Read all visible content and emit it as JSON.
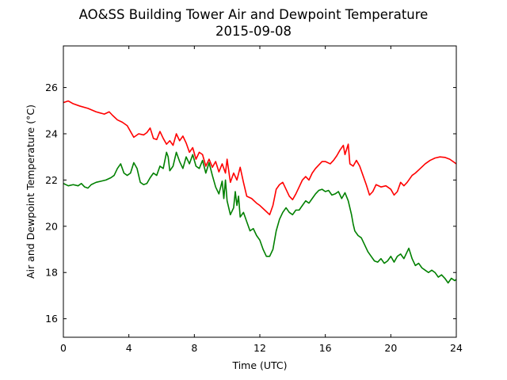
{
  "chart_data": {
    "type": "line",
    "title": "AO&SS Building Tower Air and Dewpoint Temperature",
    "subtitle": "2015-09-08",
    "xlabel": "Time (UTC)",
    "ylabel": "Air and Dewpoint Temperature (°C)",
    "xlim": [
      0,
      24
    ],
    "ylim": [
      15.2,
      27.8
    ],
    "xticks": [
      0,
      4,
      8,
      12,
      16,
      20,
      24
    ],
    "yticks": [
      16,
      18,
      20,
      22,
      24,
      26
    ],
    "grid": false,
    "series": [
      {
        "color": "#ff0000",
        "points": [
          [
            0.0,
            25.35
          ],
          [
            0.3,
            25.42
          ],
          [
            0.6,
            25.3
          ],
          [
            1.0,
            25.2
          ],
          [
            1.5,
            25.1
          ],
          [
            2.0,
            24.95
          ],
          [
            2.5,
            24.85
          ],
          [
            2.8,
            24.95
          ],
          [
            3.0,
            24.8
          ],
          [
            3.3,
            24.6
          ],
          [
            3.6,
            24.5
          ],
          [
            3.9,
            24.35
          ],
          [
            4.1,
            24.1
          ],
          [
            4.3,
            23.85
          ],
          [
            4.6,
            24.0
          ],
          [
            4.9,
            23.95
          ],
          [
            5.1,
            24.05
          ],
          [
            5.3,
            24.25
          ],
          [
            5.5,
            23.8
          ],
          [
            5.7,
            23.75
          ],
          [
            5.9,
            24.1
          ],
          [
            6.1,
            23.8
          ],
          [
            6.3,
            23.55
          ],
          [
            6.5,
            23.7
          ],
          [
            6.7,
            23.5
          ],
          [
            6.9,
            24.0
          ],
          [
            7.1,
            23.7
          ],
          [
            7.3,
            23.9
          ],
          [
            7.5,
            23.6
          ],
          [
            7.7,
            23.2
          ],
          [
            7.9,
            23.4
          ],
          [
            8.1,
            22.9
          ],
          [
            8.3,
            23.2
          ],
          [
            8.5,
            23.1
          ],
          [
            8.7,
            22.6
          ],
          [
            8.9,
            22.9
          ],
          [
            9.1,
            22.55
          ],
          [
            9.3,
            22.8
          ],
          [
            9.5,
            22.35
          ],
          [
            9.7,
            22.7
          ],
          [
            9.9,
            22.3
          ],
          [
            10.0,
            22.9
          ],
          [
            10.2,
            21.9
          ],
          [
            10.4,
            22.3
          ],
          [
            10.6,
            22.0
          ],
          [
            10.8,
            22.55
          ],
          [
            11.0,
            21.9
          ],
          [
            11.2,
            21.3
          ],
          [
            11.5,
            21.2
          ],
          [
            11.8,
            21.0
          ],
          [
            12.0,
            20.9
          ],
          [
            12.3,
            20.7
          ],
          [
            12.6,
            20.5
          ],
          [
            12.8,
            20.9
          ],
          [
            13.0,
            21.6
          ],
          [
            13.2,
            21.8
          ],
          [
            13.4,
            21.9
          ],
          [
            13.6,
            21.6
          ],
          [
            13.8,
            21.3
          ],
          [
            14.0,
            21.15
          ],
          [
            14.2,
            21.4
          ],
          [
            14.4,
            21.7
          ],
          [
            14.6,
            22.0
          ],
          [
            14.8,
            22.15
          ],
          [
            15.0,
            22.0
          ],
          [
            15.2,
            22.3
          ],
          [
            15.4,
            22.5
          ],
          [
            15.6,
            22.65
          ],
          [
            15.8,
            22.8
          ],
          [
            16.0,
            22.8
          ],
          [
            16.3,
            22.7
          ],
          [
            16.5,
            22.85
          ],
          [
            16.7,
            23.05
          ],
          [
            16.9,
            23.3
          ],
          [
            17.1,
            23.5
          ],
          [
            17.2,
            23.1
          ],
          [
            17.4,
            23.55
          ],
          [
            17.5,
            22.7
          ],
          [
            17.7,
            22.6
          ],
          [
            17.9,
            22.85
          ],
          [
            18.1,
            22.6
          ],
          [
            18.3,
            22.2
          ],
          [
            18.5,
            21.8
          ],
          [
            18.7,
            21.35
          ],
          [
            18.9,
            21.5
          ],
          [
            19.1,
            21.8
          ],
          [
            19.4,
            21.7
          ],
          [
            19.7,
            21.75
          ],
          [
            20.0,
            21.6
          ],
          [
            20.2,
            21.35
          ],
          [
            20.4,
            21.5
          ],
          [
            20.6,
            21.9
          ],
          [
            20.8,
            21.75
          ],
          [
            21.0,
            21.9
          ],
          [
            21.3,
            22.2
          ],
          [
            21.5,
            22.3
          ],
          [
            21.8,
            22.5
          ],
          [
            22.1,
            22.7
          ],
          [
            22.4,
            22.85
          ],
          [
            22.7,
            22.95
          ],
          [
            23.0,
            23.0
          ],
          [
            23.3,
            22.98
          ],
          [
            23.6,
            22.9
          ],
          [
            23.8,
            22.8
          ],
          [
            24.0,
            22.7
          ]
        ]
      },
      {
        "color": "#008000",
        "points": [
          [
            0.0,
            21.85
          ],
          [
            0.3,
            21.75
          ],
          [
            0.6,
            21.8
          ],
          [
            0.9,
            21.75
          ],
          [
            1.1,
            21.85
          ],
          [
            1.3,
            21.7
          ],
          [
            1.5,
            21.65
          ],
          [
            1.7,
            21.8
          ],
          [
            2.0,
            21.9
          ],
          [
            2.3,
            21.95
          ],
          [
            2.6,
            22.0
          ],
          [
            2.9,
            22.1
          ],
          [
            3.1,
            22.2
          ],
          [
            3.3,
            22.5
          ],
          [
            3.5,
            22.7
          ],
          [
            3.7,
            22.3
          ],
          [
            3.9,
            22.2
          ],
          [
            4.1,
            22.3
          ],
          [
            4.3,
            22.75
          ],
          [
            4.5,
            22.5
          ],
          [
            4.7,
            21.9
          ],
          [
            4.9,
            21.8
          ],
          [
            5.1,
            21.85
          ],
          [
            5.3,
            22.1
          ],
          [
            5.5,
            22.3
          ],
          [
            5.7,
            22.2
          ],
          [
            5.9,
            22.6
          ],
          [
            6.1,
            22.5
          ],
          [
            6.3,
            23.2
          ],
          [
            6.4,
            23.0
          ],
          [
            6.5,
            22.4
          ],
          [
            6.7,
            22.6
          ],
          [
            6.9,
            23.2
          ],
          [
            7.1,
            22.8
          ],
          [
            7.3,
            22.5
          ],
          [
            7.5,
            23.0
          ],
          [
            7.7,
            22.7
          ],
          [
            7.9,
            23.1
          ],
          [
            8.1,
            22.6
          ],
          [
            8.3,
            22.5
          ],
          [
            8.5,
            22.85
          ],
          [
            8.7,
            22.3
          ],
          [
            8.9,
            22.75
          ],
          [
            9.1,
            22.2
          ],
          [
            9.3,
            21.7
          ],
          [
            9.5,
            21.4
          ],
          [
            9.7,
            21.95
          ],
          [
            9.8,
            21.2
          ],
          [
            9.9,
            22.0
          ],
          [
            10.0,
            21.1
          ],
          [
            10.2,
            20.5
          ],
          [
            10.4,
            20.8
          ],
          [
            10.5,
            21.5
          ],
          [
            10.6,
            20.9
          ],
          [
            10.7,
            21.3
          ],
          [
            10.8,
            20.4
          ],
          [
            11.0,
            20.6
          ],
          [
            11.2,
            20.2
          ],
          [
            11.4,
            19.8
          ],
          [
            11.6,
            19.9
          ],
          [
            11.8,
            19.6
          ],
          [
            12.0,
            19.4
          ],
          [
            12.2,
            19.0
          ],
          [
            12.4,
            18.7
          ],
          [
            12.6,
            18.7
          ],
          [
            12.8,
            19.0
          ],
          [
            13.0,
            19.8
          ],
          [
            13.2,
            20.3
          ],
          [
            13.4,
            20.6
          ],
          [
            13.6,
            20.8
          ],
          [
            13.8,
            20.6
          ],
          [
            14.0,
            20.5
          ],
          [
            14.2,
            20.7
          ],
          [
            14.4,
            20.7
          ],
          [
            14.6,
            20.9
          ],
          [
            14.8,
            21.1
          ],
          [
            15.0,
            21.0
          ],
          [
            15.2,
            21.2
          ],
          [
            15.4,
            21.4
          ],
          [
            15.6,
            21.55
          ],
          [
            15.8,
            21.6
          ],
          [
            16.0,
            21.5
          ],
          [
            16.2,
            21.55
          ],
          [
            16.4,
            21.35
          ],
          [
            16.6,
            21.4
          ],
          [
            16.8,
            21.5
          ],
          [
            17.0,
            21.2
          ],
          [
            17.2,
            21.45
          ],
          [
            17.4,
            21.1
          ],
          [
            17.6,
            20.5
          ],
          [
            17.7,
            20.1
          ],
          [
            17.8,
            19.8
          ],
          [
            18.0,
            19.6
          ],
          [
            18.2,
            19.5
          ],
          [
            18.4,
            19.2
          ],
          [
            18.6,
            18.9
          ],
          [
            18.8,
            18.7
          ],
          [
            19.0,
            18.5
          ],
          [
            19.2,
            18.45
          ],
          [
            19.4,
            18.6
          ],
          [
            19.6,
            18.4
          ],
          [
            19.8,
            18.5
          ],
          [
            20.0,
            18.7
          ],
          [
            20.2,
            18.45
          ],
          [
            20.4,
            18.7
          ],
          [
            20.6,
            18.8
          ],
          [
            20.8,
            18.6
          ],
          [
            21.0,
            18.9
          ],
          [
            21.1,
            19.05
          ],
          [
            21.3,
            18.6
          ],
          [
            21.5,
            18.3
          ],
          [
            21.7,
            18.4
          ],
          [
            21.9,
            18.2
          ],
          [
            22.1,
            18.1
          ],
          [
            22.3,
            18.0
          ],
          [
            22.5,
            18.1
          ],
          [
            22.7,
            18.0
          ],
          [
            22.9,
            17.8
          ],
          [
            23.1,
            17.9
          ],
          [
            23.3,
            17.75
          ],
          [
            23.5,
            17.55
          ],
          [
            23.7,
            17.75
          ],
          [
            23.9,
            17.65
          ],
          [
            24.0,
            17.7
          ]
        ]
      }
    ]
  }
}
